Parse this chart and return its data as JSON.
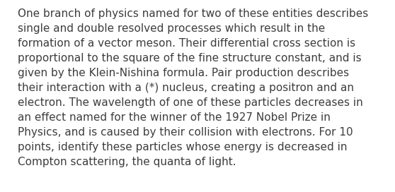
{
  "lines": [
    "One branch of physics named for two of these entities describes",
    "single and double resolved processes which result in the",
    "formation of a vector meson. Their differential cross section is",
    "proportional to the square of the fine structure constant, and is",
    "given by the Klein-Nishina formula. Pair production describes",
    "their interaction with a (*) nucleus, creating a positron and an",
    "electron. The wavelength of one of these particles decreases in",
    "an effect named for the winner of the 1927 Nobel Prize in",
    "Physics, and is caused by their collision with electrons. For 10",
    "points, identify these particles whose energy is decreased in",
    "Compton scattering, the quanta of light."
  ],
  "background_color": "#ffffff",
  "text_color": "#3d3d3d",
  "font_size": 11.0,
  "font_family": "DejaVu Sans",
  "fig_width": 5.58,
  "fig_height": 2.72,
  "dpi": 100
}
